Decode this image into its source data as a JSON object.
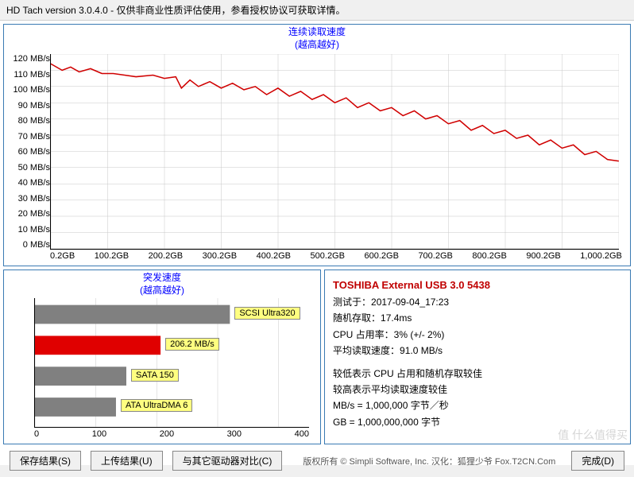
{
  "titlebar": "HD Tach version 3.0.4.0  - 仅供非商业性质评估使用，参看授权协议可获取详情。",
  "top_chart": {
    "title_line1": "连续读取速度",
    "title_line2": "(越高越好)",
    "type": "line",
    "ylim": [
      0,
      120
    ],
    "ytick_step": 10,
    "y_unit": "MB/s",
    "xlim": [
      0.2,
      1000.2
    ],
    "x_unit": "GB",
    "x_ticks": [
      "0.2GB",
      "100.2GB",
      "200.2GB",
      "300.2GB",
      "400.2GB",
      "500.2GB",
      "600.2GB",
      "700.2GB",
      "800.2GB",
      "900.2GB",
      "1,000.2GB"
    ],
    "line_color": "#d00000",
    "grid_color": "#c8c8c8",
    "background": "#ffffff",
    "points": [
      [
        0,
        114
      ],
      [
        20,
        110
      ],
      [
        35,
        112
      ],
      [
        50,
        109
      ],
      [
        70,
        111
      ],
      [
        90,
        108
      ],
      [
        110,
        108
      ],
      [
        130,
        107
      ],
      [
        150,
        106
      ],
      [
        180,
        107
      ],
      [
        200,
        105
      ],
      [
        220,
        106
      ],
      [
        230,
        99
      ],
      [
        245,
        104
      ],
      [
        260,
        100
      ],
      [
        280,
        103
      ],
      [
        300,
        99
      ],
      [
        320,
        102
      ],
      [
        340,
        98
      ],
      [
        360,
        100
      ],
      [
        380,
        95
      ],
      [
        400,
        99
      ],
      [
        420,
        94
      ],
      [
        440,
        97
      ],
      [
        460,
        92
      ],
      [
        480,
        95
      ],
      [
        500,
        90
      ],
      [
        520,
        93
      ],
      [
        540,
        87
      ],
      [
        560,
        90
      ],
      [
        580,
        85
      ],
      [
        600,
        87
      ],
      [
        620,
        82
      ],
      [
        640,
        85
      ],
      [
        660,
        80
      ],
      [
        680,
        82
      ],
      [
        700,
        77
      ],
      [
        720,
        79
      ],
      [
        740,
        73
      ],
      [
        760,
        76
      ],
      [
        780,
        71
      ],
      [
        800,
        73
      ],
      [
        820,
        68
      ],
      [
        840,
        70
      ],
      [
        860,
        64
      ],
      [
        880,
        67
      ],
      [
        900,
        62
      ],
      [
        920,
        64
      ],
      [
        940,
        58
      ],
      [
        960,
        60
      ],
      [
        980,
        55
      ],
      [
        1000,
        54
      ]
    ]
  },
  "burst_chart": {
    "title_line1": "突发速度",
    "title_line2": "(越高越好)",
    "type": "bar",
    "xlim": [
      0,
      450
    ],
    "xtick_step": 100,
    "x_ticks": [
      "0",
      "100",
      "200",
      "300",
      "400"
    ],
    "bar_color": "#808080",
    "highlight_color": "#e00000",
    "label_bg": "#ffff80",
    "bars": [
      {
        "label": "SCSI Ultra320",
        "value": 320,
        "highlight": false
      },
      {
        "label": "206.2 MB/s",
        "value": 206.2,
        "highlight": true
      },
      {
        "label": "SATA 150",
        "value": 150,
        "highlight": false
      },
      {
        "label": "ATA UltraDMA 6",
        "value": 133,
        "highlight": false
      }
    ]
  },
  "info": {
    "device": "TOSHIBA External USB 3.0 5438",
    "tested_label": "测试于：",
    "tested_value": "2017-09-04_17:23",
    "random_label": "随机存取：",
    "random_value": "17.4ms",
    "cpu_label": "CPU 占用率：",
    "cpu_value": "3% (+/- 2%)",
    "avg_label": "平均读取速度：",
    "avg_value": "91.0 MB/s",
    "note1": "较低表示 CPU 占用和随机存取较佳",
    "note2": "较高表示平均读取速度较佳",
    "note3": "MB/s = 1,000,000 字节／秒",
    "note4": "GB = 1,000,000,000 字节"
  },
  "buttons": {
    "save": "保存结果(S)",
    "upload": "上传结果(U)",
    "compare": "与其它驱动器对比(C)",
    "done": "完成(D)"
  },
  "footer": "版权所有 © Simpli Software, Inc. 汉化：狐狸少爷 Fox.T2CN.Com",
  "watermark": "值  什么值得买"
}
